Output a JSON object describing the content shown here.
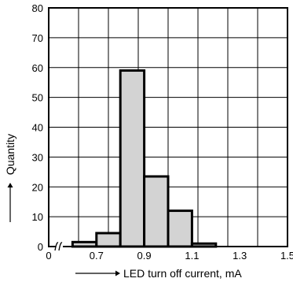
{
  "chart_data": {
    "type": "bar",
    "xlabel": "LED turn off current, mA",
    "ylabel": "Quantity",
    "x_ticks": [
      "0",
      "0.7",
      "0.9",
      "1.1",
      "1.3",
      "1.5"
    ],
    "y_ticks": [
      "0",
      "10",
      "20",
      "30",
      "40",
      "50",
      "60",
      "70",
      "80"
    ],
    "xlim": [
      0.5,
      1.5
    ],
    "ylim": [
      0,
      80
    ],
    "grid": true,
    "axis_break": true,
    "bar_fill": "#d3d3d3",
    "bars": [
      {
        "x0": 0.6,
        "x1": 0.7,
        "value": 1.5
      },
      {
        "x0": 0.7,
        "x1": 0.8,
        "value": 4.5
      },
      {
        "x0": 0.8,
        "x1": 0.9,
        "value": 59
      },
      {
        "x0": 0.9,
        "x1": 1.0,
        "value": 23.5
      },
      {
        "x0": 1.0,
        "x1": 1.1,
        "value": 12
      },
      {
        "x0": 1.1,
        "x1": 1.2,
        "value": 1
      }
    ]
  }
}
